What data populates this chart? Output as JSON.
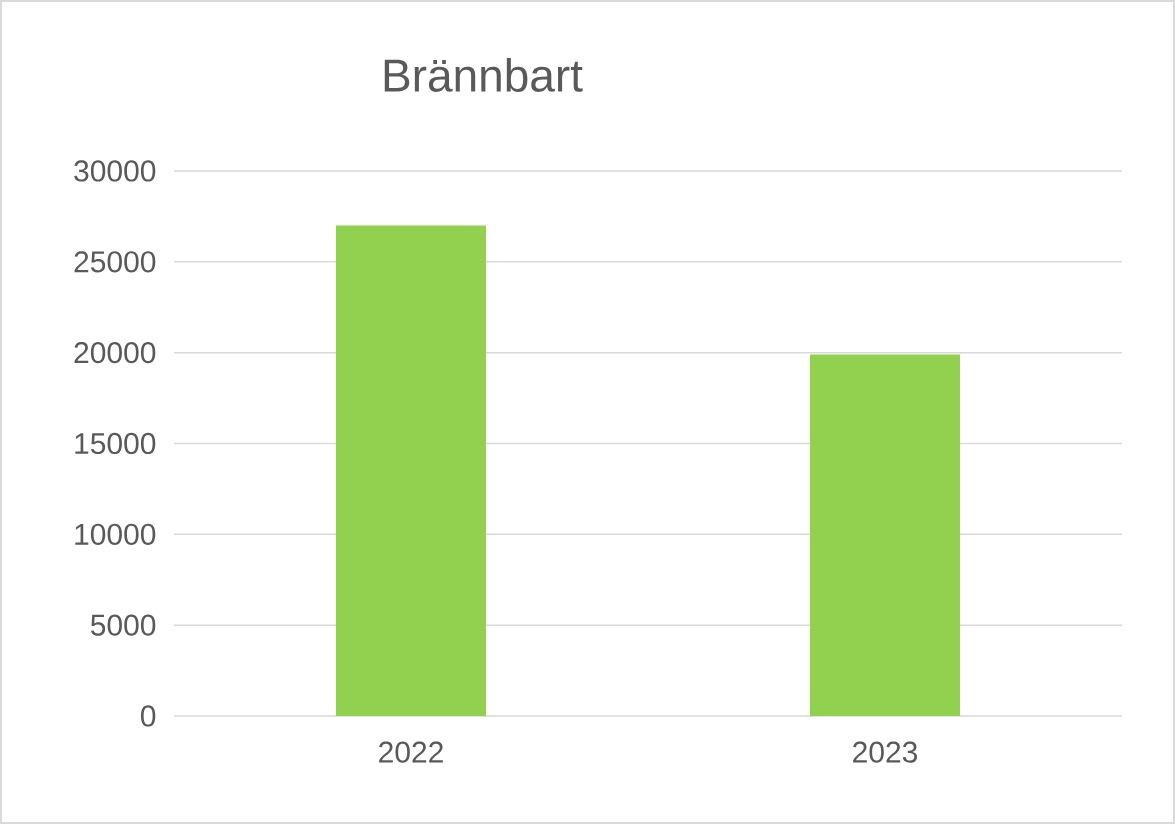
{
  "chart_data": {
    "type": "bar",
    "title": "Brännbart",
    "categories": [
      "2022",
      "2023"
    ],
    "values": [
      27000,
      19900
    ],
    "color": "#92d050",
    "ylim": [
      0,
      30000
    ],
    "yticks": [
      0,
      5000,
      10000,
      15000,
      20000,
      25000,
      30000
    ],
    "grid": "y"
  }
}
